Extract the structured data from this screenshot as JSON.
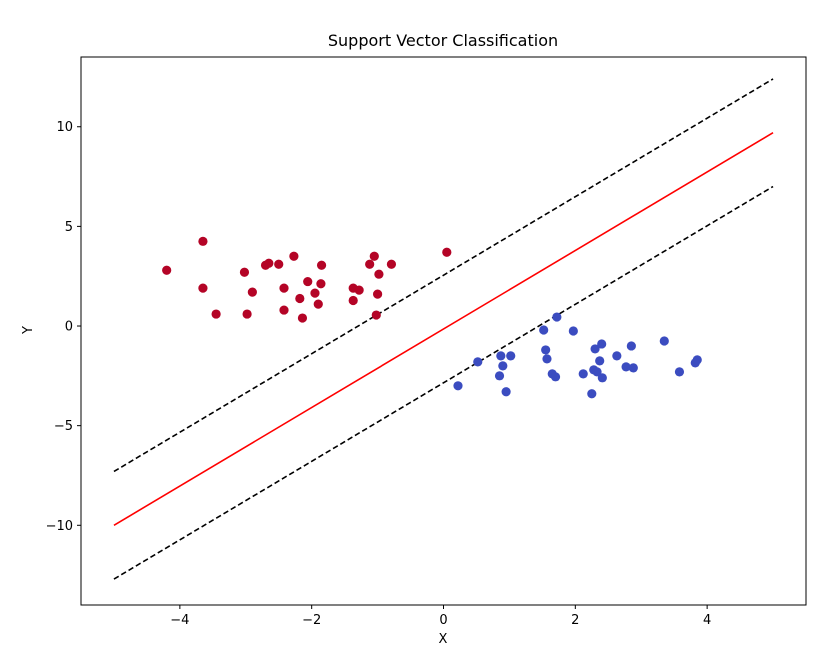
{
  "chart_data": {
    "type": "scatter",
    "title": "Support Vector Classification",
    "xlabel": "X",
    "ylabel": "Y",
    "xlim": [
      -5.5,
      5.5
    ],
    "ylim": [
      -14,
      13.5
    ],
    "xticks": [
      -4,
      -2,
      0,
      2,
      4
    ],
    "xtick_labels": [
      "−4",
      "−2",
      "0",
      "2",
      "4"
    ],
    "yticks": [
      -10,
      -5,
      0,
      5,
      10
    ],
    "ytick_labels": [
      "−10",
      "−5",
      "0",
      "5",
      "10"
    ],
    "grid": false,
    "classes": [
      {
        "color": "#b40426",
        "points": [
          [
            -4.2,
            2.8
          ],
          [
            -3.65,
            4.25
          ],
          [
            -3.65,
            1.9
          ],
          [
            -3.45,
            0.6
          ],
          [
            -3.02,
            2.7
          ],
          [
            -2.98,
            0.6
          ],
          [
            -2.9,
            1.7
          ],
          [
            -2.7,
            3.05
          ],
          [
            -2.65,
            3.15
          ],
          [
            -2.5,
            3.1
          ],
          [
            -2.42,
            1.9
          ],
          [
            -2.42,
            0.8
          ],
          [
            -2.27,
            3.5
          ],
          [
            -2.18,
            1.38
          ],
          [
            -2.14,
            0.4
          ],
          [
            -2.06,
            2.23
          ],
          [
            -1.95,
            1.65
          ],
          [
            -1.9,
            1.1
          ],
          [
            -1.86,
            2.12
          ],
          [
            -1.85,
            3.05
          ],
          [
            -1.37,
            1.28
          ],
          [
            -1.37,
            1.9
          ],
          [
            -1.28,
            1.8
          ],
          [
            -1.12,
            3.1
          ],
          [
            -1.05,
            3.5
          ],
          [
            -1.02,
            0.55
          ],
          [
            -1.0,
            1.6
          ],
          [
            -0.98,
            2.6
          ],
          [
            -0.79,
            3.1
          ],
          [
            0.05,
            3.7
          ]
        ]
      },
      {
        "color": "#3b4cc0",
        "points": [
          [
            0.22,
            -3.0
          ],
          [
            0.52,
            -1.8
          ],
          [
            0.85,
            -2.5
          ],
          [
            0.87,
            -1.5
          ],
          [
            0.9,
            -2.0
          ],
          [
            0.95,
            -3.3
          ],
          [
            1.02,
            -1.5
          ],
          [
            1.52,
            -0.2
          ],
          [
            1.55,
            -1.2
          ],
          [
            1.57,
            -1.65
          ],
          [
            1.65,
            -2.4
          ],
          [
            1.7,
            -2.55
          ],
          [
            1.72,
            0.45
          ],
          [
            1.97,
            -0.25
          ],
          [
            2.12,
            -2.4
          ],
          [
            2.25,
            -3.4
          ],
          [
            2.28,
            -2.2
          ],
          [
            2.3,
            -1.15
          ],
          [
            2.33,
            -2.3
          ],
          [
            2.37,
            -1.75
          ],
          [
            2.4,
            -0.9
          ],
          [
            2.41,
            -2.6
          ],
          [
            2.63,
            -1.5
          ],
          [
            2.77,
            -2.05
          ],
          [
            2.85,
            -1.0
          ],
          [
            2.88,
            -2.1
          ],
          [
            3.35,
            -0.75
          ],
          [
            3.58,
            -2.3
          ],
          [
            3.82,
            -1.85
          ],
          [
            3.85,
            -1.7
          ]
        ]
      }
    ],
    "lines": [
      {
        "kind": "decision-boundary",
        "style": "solid",
        "color": "#ff0000",
        "x": [
          -5,
          5
        ],
        "y": [
          -10.0,
          9.7
        ]
      },
      {
        "kind": "margin-upper",
        "style": "dashed",
        "color": "#000000",
        "x": [
          -5,
          5
        ],
        "y": [
          -7.3,
          12.4
        ]
      },
      {
        "kind": "margin-lower",
        "style": "dashed",
        "color": "#000000",
        "x": [
          -5,
          5
        ],
        "y": [
          -12.7,
          7.0
        ]
      }
    ]
  }
}
